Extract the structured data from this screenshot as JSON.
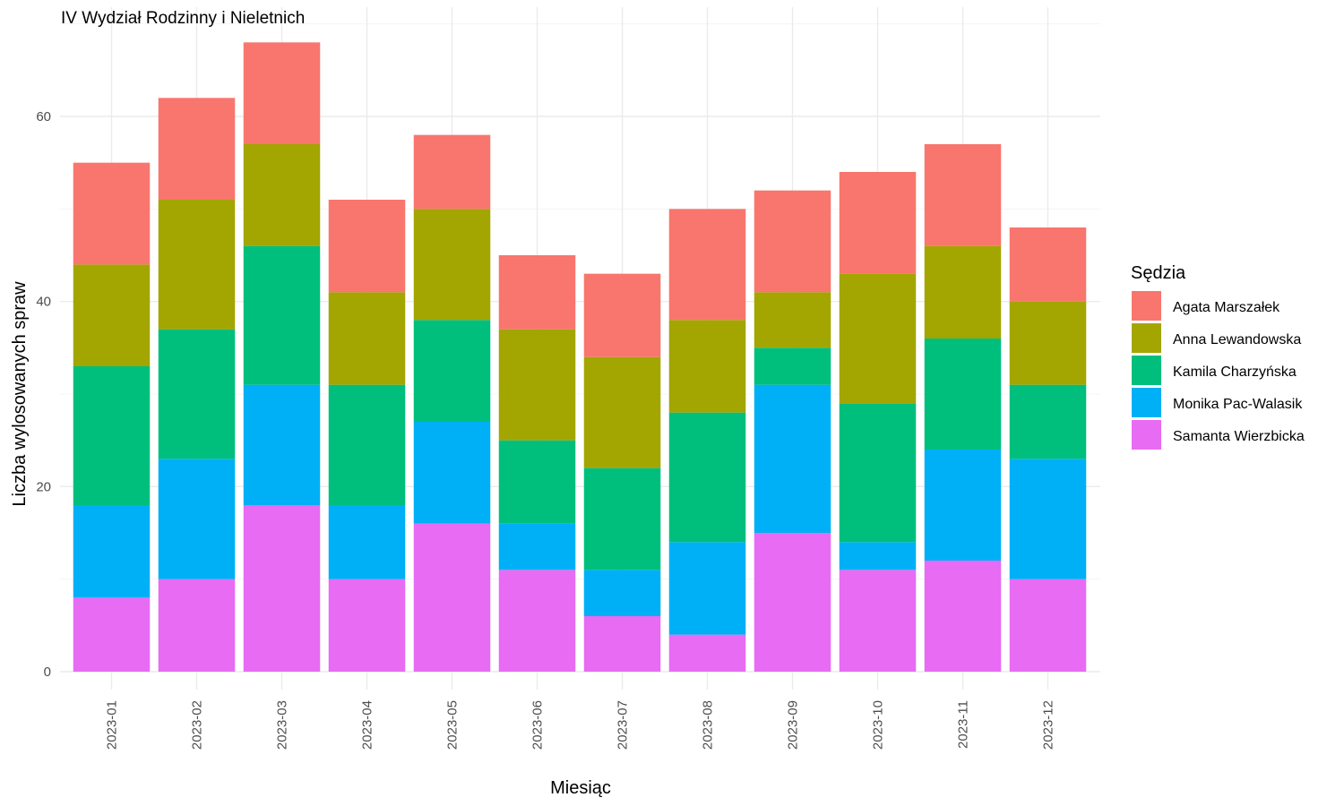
{
  "chart_data": {
    "type": "bar",
    "stacked": true,
    "title": "IV Wydział Rodzinny i Nieletnich",
    "xlabel": "Miesiąc",
    "ylabel": "Liczba wylosowanych spraw",
    "ylim": [
      0,
      70
    ],
    "y_ticks": [
      "0",
      "20",
      "40",
      "60"
    ],
    "grid": true,
    "legend_title": "Sędzia",
    "legend_position": "right",
    "categories": [
      "2023-01",
      "2023-02",
      "2023-03",
      "2023-04",
      "2023-05",
      "2023-06",
      "2023-07",
      "2023-08",
      "2023-09",
      "2023-10",
      "2023-11",
      "2023-12"
    ],
    "series": [
      {
        "name": "Samanta Wierzbicka",
        "color": "#E76BF3",
        "values": [
          8,
          10,
          18,
          10,
          16,
          11,
          6,
          4,
          15,
          11,
          12,
          10
        ]
      },
      {
        "name": "Monika Pac-Walasik",
        "color": "#00B0F6",
        "values": [
          10,
          13,
          13,
          8,
          11,
          5,
          5,
          10,
          16,
          3,
          12,
          13
        ]
      },
      {
        "name": "Kamila Charzyńska",
        "color": "#00BF7D",
        "values": [
          15,
          14,
          15,
          13,
          11,
          9,
          11,
          14,
          4,
          15,
          12,
          8
        ]
      },
      {
        "name": "Anna Lewandowska",
        "color": "#A3A500",
        "values": [
          11,
          14,
          11,
          10,
          12,
          12,
          12,
          10,
          6,
          14,
          10,
          9
        ]
      },
      {
        "name": "Agata Marszałek",
        "color": "#F8766D",
        "values": [
          11,
          11,
          11,
          10,
          8,
          8,
          9,
          12,
          11,
          11,
          11,
          8
        ]
      }
    ],
    "legend_order": [
      "Agata Marszałek",
      "Anna Lewandowska",
      "Kamila Charzyńska",
      "Monika Pac-Walasik",
      "Samanta Wierzbicka"
    ]
  }
}
